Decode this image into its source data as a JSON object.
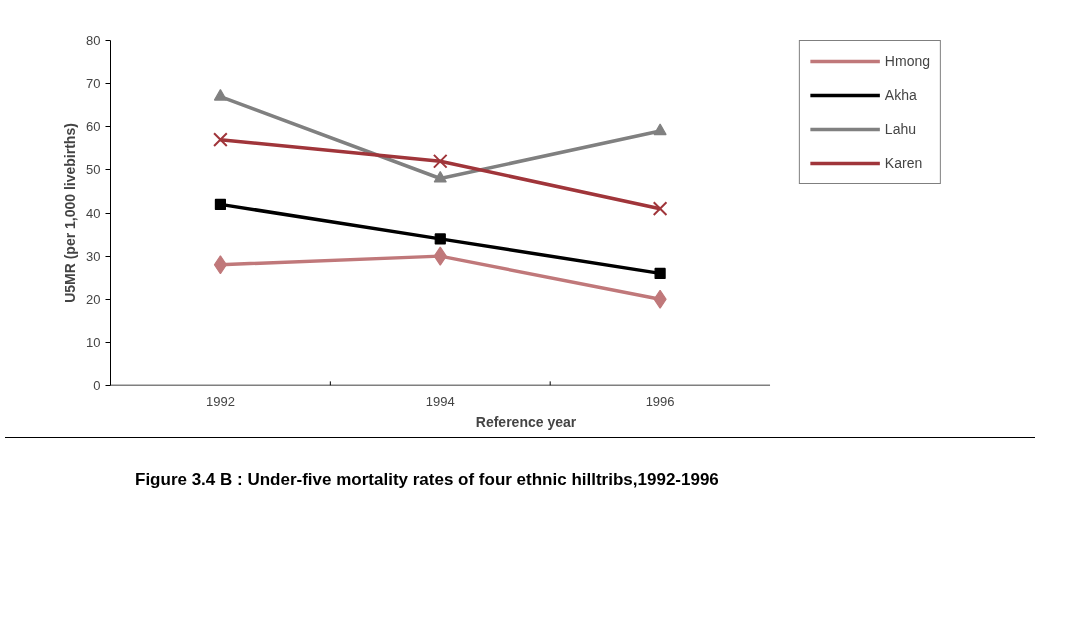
{
  "chart_data": {
    "type": "line",
    "xlabel": "Reference year",
    "ylabel": "U5MR (per 1,000 livebirths)",
    "categories": [
      "1992",
      "1994",
      "1996"
    ],
    "ylim": [
      0,
      80
    ],
    "yticks": [
      0,
      10,
      20,
      30,
      40,
      50,
      60,
      70,
      80
    ],
    "grid": false,
    "legend": "right",
    "series": [
      {
        "name": "Hmong",
        "color": "#c0787a",
        "marker": "diamond",
        "values": [
          28,
          30,
          20
        ]
      },
      {
        "name": "Akha",
        "color": "#000000",
        "marker": "square",
        "values": [
          42,
          34,
          26
        ]
      },
      {
        "name": "Lahu",
        "color": "#808080",
        "marker": "triangle",
        "values": [
          67,
          48,
          59
        ]
      },
      {
        "name": "Karen",
        "color": "#a0353a",
        "marker": "cross",
        "values": [
          57,
          52,
          41
        ]
      }
    ],
    "annotations": [
      "Figure 3.4 B   : Under-five mortality rates of four ethnic hilltribs,1992-1996"
    ]
  }
}
